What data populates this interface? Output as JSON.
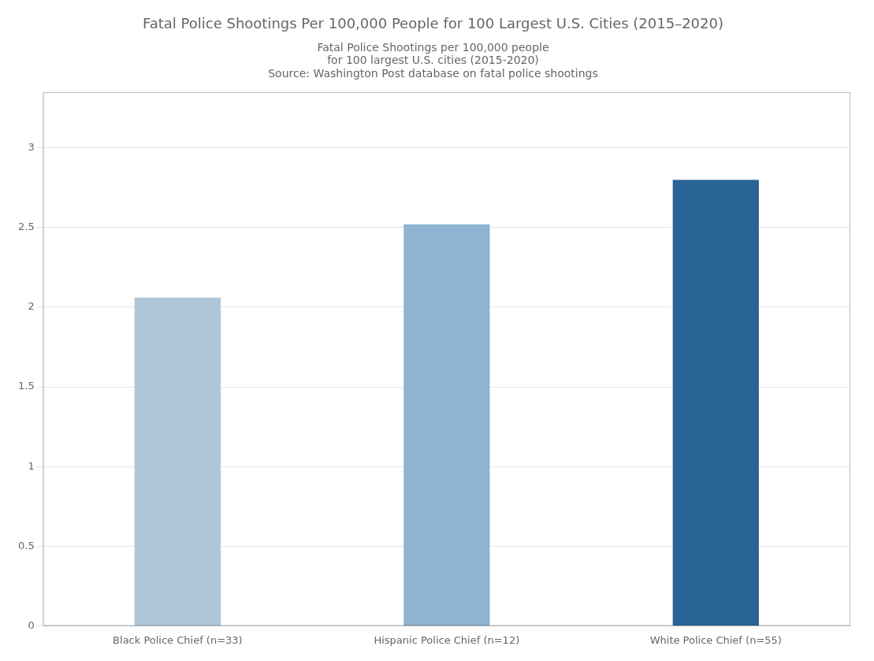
{
  "chart_data": {
    "type": "bar",
    "title": "Fatal Police Shootings Per 100,000 People for 100 Largest U.S. Cities (2015–2020)",
    "subtitle": [
      "Fatal Police Shootings per 100,000 people",
      "for 100 largest U.S. cities (2015-2020)",
      "Source: Washington Post database on fatal police shootings"
    ],
    "categories": [
      "Black Police Chief (n=33)",
      "Hispanic Police Chief (n=12)",
      "White Police Chief (n=55)"
    ],
    "values": [
      2.06,
      2.52,
      2.8
    ],
    "colors": [
      "#afc5d8",
      "#8db4d0",
      "#2a6496"
    ],
    "ylim": [
      0,
      3.35
    ],
    "yticks": [
      0,
      0.5,
      1.0,
      1.5,
      2.0,
      2.5,
      3.0
    ],
    "grid": true
  }
}
